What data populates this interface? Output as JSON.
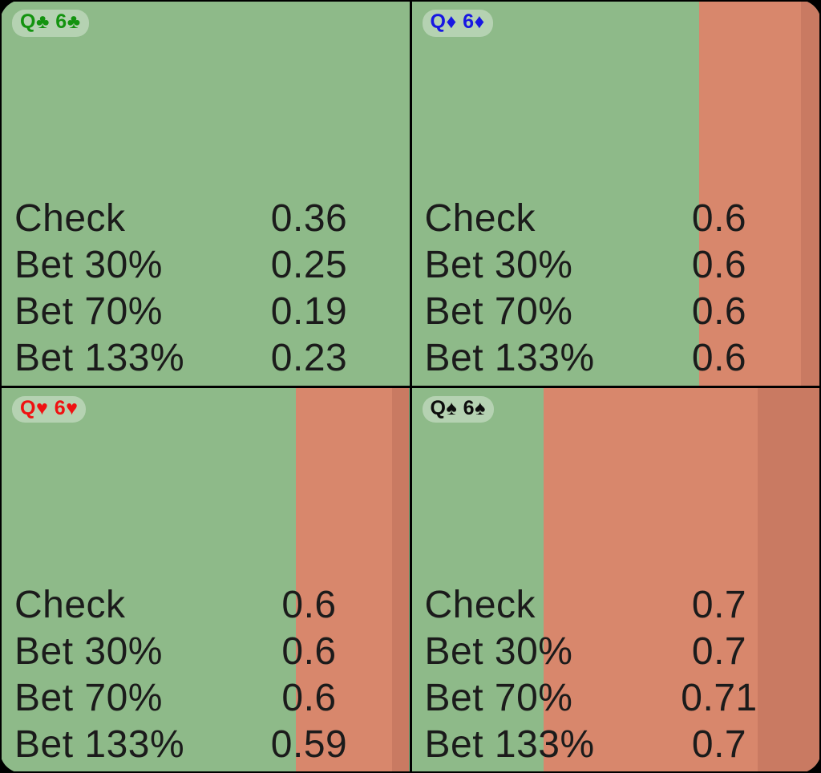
{
  "palette": {
    "background": "#000000",
    "green": "#8eba89",
    "red": "#d8876c",
    "red_dark": "#c97a62",
    "text": "#1b1b1b",
    "pill_bg": "rgba(255,255,255,0.35)"
  },
  "suit_colors": {
    "clubs": "#13930f",
    "diamonds": "#1717e2",
    "hearts": "#ef1111",
    "spades": "#0d0d0d"
  },
  "cells": [
    {
      "hand": {
        "label": "Q♣ 6♣",
        "suit": "clubs"
      },
      "segments": [
        {
          "color": "green",
          "fraction": 1.0
        }
      ],
      "rows": [
        {
          "action": "Check",
          "ev": "0.36"
        },
        {
          "action": "Bet 30%",
          "ev": "0.25"
        },
        {
          "action": "Bet 70%",
          "ev": "0.19"
        },
        {
          "action": "Bet 133%",
          "ev": "0.23"
        }
      ]
    },
    {
      "hand": {
        "label": "Q♦ 6♦",
        "suit": "diamonds"
      },
      "segments": [
        {
          "color": "green",
          "fraction": 0.705
        },
        {
          "color": "red",
          "fraction": 0.25
        },
        {
          "color": "red_dark",
          "fraction": 0.045
        }
      ],
      "rows": [
        {
          "action": "Check",
          "ev": "0.6"
        },
        {
          "action": "Bet 30%",
          "ev": "0.6"
        },
        {
          "action": "Bet 70%",
          "ev": "0.6"
        },
        {
          "action": "Bet 133%",
          "ev": "0.6"
        }
      ]
    },
    {
      "hand": {
        "label": "Q♥ 6♥",
        "suit": "hearts"
      },
      "segments": [
        {
          "color": "green",
          "fraction": 0.722
        },
        {
          "color": "red",
          "fraction": 0.235
        },
        {
          "color": "red_dark",
          "fraction": 0.043
        }
      ],
      "rows": [
        {
          "action": "Check",
          "ev": "0.6"
        },
        {
          "action": "Bet 30%",
          "ev": "0.6"
        },
        {
          "action": "Bet 70%",
          "ev": "0.6"
        },
        {
          "action": "Bet 133%",
          "ev": "0.59"
        }
      ]
    },
    {
      "hand": {
        "label": "Q♠ 6♠",
        "suit": "spades"
      },
      "segments": [
        {
          "color": "green",
          "fraction": 0.324
        },
        {
          "color": "red",
          "fraction": 0.525
        },
        {
          "color": "red_dark",
          "fraction": 0.151
        }
      ],
      "rows": [
        {
          "action": "Check",
          "ev": "0.7"
        },
        {
          "action": "Bet 30%",
          "ev": "0.7"
        },
        {
          "action": "Bet 70%",
          "ev": "0.71"
        },
        {
          "action": "Bet 133%",
          "ev": "0.7"
        }
      ]
    }
  ]
}
